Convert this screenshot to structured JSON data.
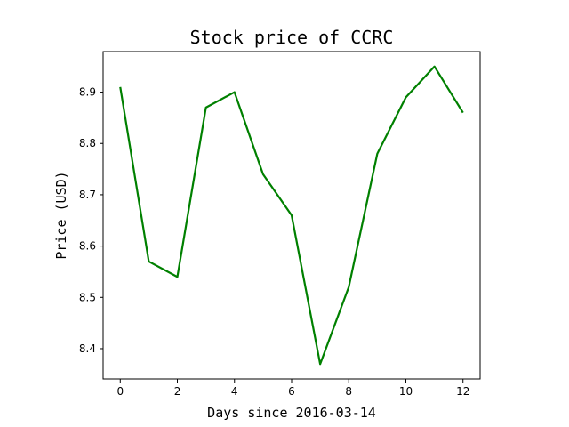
{
  "chart_data": {
    "type": "line",
    "title": "Stock price of CCRC",
    "xlabel": "Days since 2016-03-14",
    "ylabel": "Price (USD)",
    "x": [
      0,
      1,
      2,
      3,
      4,
      5,
      6,
      7,
      8,
      9,
      10,
      11,
      12
    ],
    "series": [
      {
        "values": [
          8.91,
          8.57,
          8.54,
          8.87,
          8.9,
          8.74,
          8.66,
          8.37,
          8.52,
          8.78,
          8.89,
          8.95,
          8.86
        ],
        "color": "#008000"
      }
    ],
    "xlim": [
      -0.6,
      12.6
    ],
    "ylim": [
      8.341,
      8.979
    ],
    "xticks": [
      0,
      2,
      4,
      6,
      8,
      10,
      12
    ],
    "xtick_labels": [
      "0",
      "2",
      "4",
      "6",
      "8",
      "10",
      "12"
    ],
    "yticks": [
      8.4,
      8.5,
      8.6,
      8.7,
      8.8,
      8.9
    ],
    "ytick_labels": [
      "8.4",
      "8.5",
      "8.6",
      "8.7",
      "8.8",
      "8.9"
    ],
    "grid": false,
    "legend": "none"
  }
}
